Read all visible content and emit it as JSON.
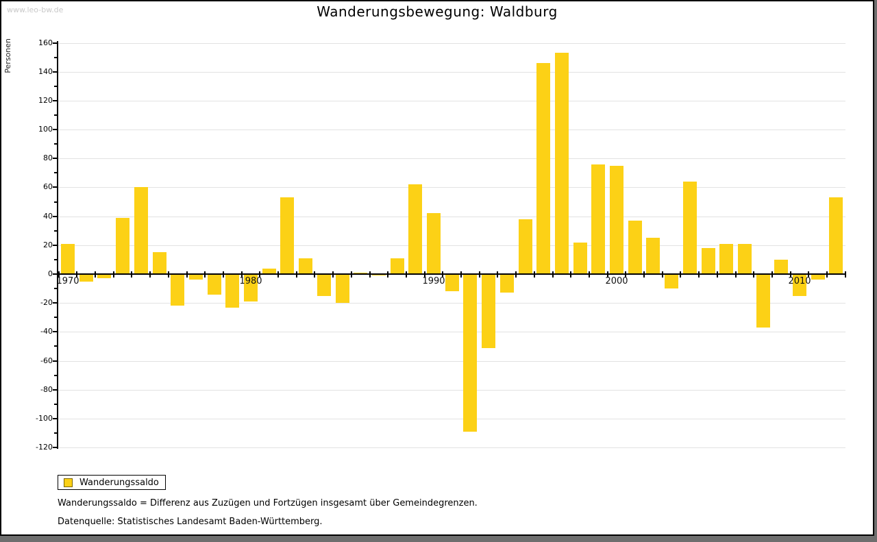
{
  "page": {
    "watermark": "www.leo-bw.de",
    "title": "Wanderungsbewegung: Waldburg"
  },
  "legend": {
    "label": "Wanderungssaldo",
    "swatch_color": "#FCD116"
  },
  "footnotes": {
    "definition": "Wanderungssaldo = Differenz aus Zuzügen und Fortzügen insgesamt über Gemeindegrenzen.",
    "source": "Datenquelle: Statistisches Landesamt Baden-Württemberg."
  },
  "chart_data": {
    "type": "bar",
    "title": "Wanderungsbewegung: Waldburg",
    "series_name": "Wanderungssaldo",
    "xlabel": "",
    "ylabel": "Personen",
    "ylim": [
      -120,
      160
    ],
    "ytick_step": 20,
    "grid": true,
    "legend_position": "bottom-left",
    "bar_color": "#FCD116",
    "categories": [
      1970,
      1971,
      1972,
      1973,
      1974,
      1975,
      1976,
      1977,
      1978,
      1979,
      1980,
      1981,
      1982,
      1983,
      1984,
      1985,
      1986,
      1987,
      1988,
      1989,
      1990,
      1991,
      1992,
      1993,
      1994,
      1995,
      1996,
      1997,
      1998,
      1999,
      2000,
      2001,
      2002,
      2003,
      2004,
      2005,
      2006,
      2007,
      2008,
      2009,
      2010,
      2011,
      2012
    ],
    "values": [
      21,
      -5,
      -3,
      39,
      60,
      15,
      -22,
      -4,
      -14,
      -23,
      -19,
      4,
      53,
      11,
      -15,
      -20,
      1,
      -1,
      11,
      62,
      42,
      -12,
      -109,
      -51,
      -13,
      38,
      146,
      153,
      22,
      76,
      75,
      37,
      25,
      -10,
      64,
      18,
      21,
      21,
      -37,
      10,
      -15,
      -4,
      53
    ],
    "ytick_labels": [
      "160",
      "140",
      "120",
      "100",
      "80",
      "60",
      "40",
      "20",
      "0",
      "-20",
      "-40",
      "-60",
      "-80",
      "-100",
      "-120"
    ],
    "xtick_labels": [
      "1970",
      "1980",
      "1990",
      "2000",
      "2010"
    ]
  }
}
